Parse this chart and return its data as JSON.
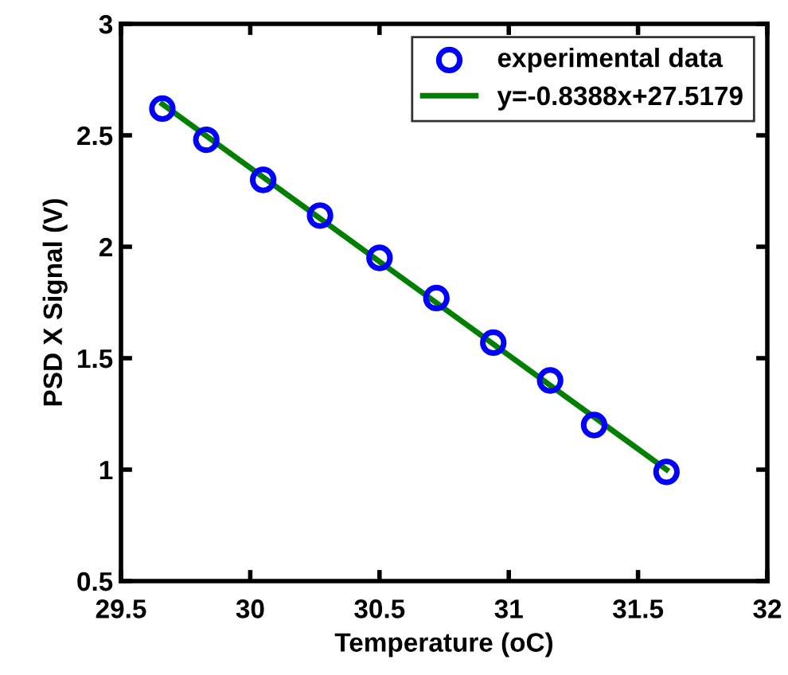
{
  "chart_data": {
    "type": "scatter",
    "xlabel": "Temperature (oC)",
    "ylabel": "PSD X Signal (V)",
    "xlim": [
      29.5,
      32
    ],
    "ylim": [
      0.5,
      3
    ],
    "xticks": [
      29.5,
      30,
      30.5,
      31,
      31.5,
      32
    ],
    "yticks": [
      0.5,
      1,
      1.5,
      2,
      2.5,
      3
    ],
    "grid": false,
    "legend": "top right",
    "series": [
      {
        "name": "experimental data",
        "marker": "circle",
        "color": "#0000ff",
        "x": [
          29.66,
          29.83,
          30.05,
          30.27,
          30.5,
          30.72,
          30.94,
          31.16,
          31.33,
          31.61
        ],
        "values": [
          2.62,
          2.48,
          2.3,
          2.14,
          1.95,
          1.77,
          1.57,
          1.4,
          1.2,
          0.99
        ]
      },
      {
        "name": "y=-0.8388x+27.5179",
        "type": "line",
        "marker": "none",
        "color": "#007f00",
        "x": [
          29.66,
          31.61
        ],
        "values": [
          2.64,
          1.0
        ]
      }
    ]
  }
}
